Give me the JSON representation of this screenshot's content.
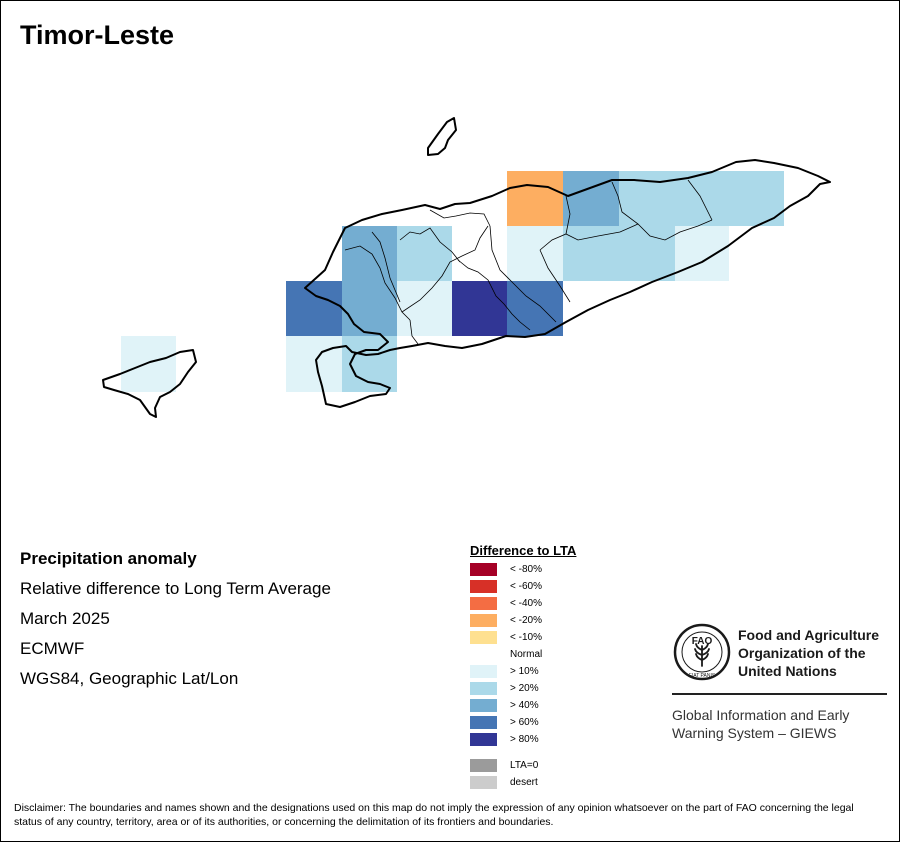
{
  "title": "Timor-Leste",
  "info": {
    "line1": "Precipitation anomaly",
    "line2": "Relative difference to Long Term Average",
    "line3": "March 2025",
    "line4": "ECMWF",
    "line5": "WGS84, Geographic Lat/Lon"
  },
  "legend": {
    "title": "Difference to LTA",
    "items": [
      {
        "label": "< -80%",
        "color": "#a50026"
      },
      {
        "label": "< -60%",
        "color": "#d73027"
      },
      {
        "label": "< -40%",
        "color": "#f46d43"
      },
      {
        "label": "< -20%",
        "color": "#fdae61"
      },
      {
        "label": "< -10%",
        "color": "#fee090"
      },
      {
        "label": "Normal",
        "color": "#ffffff"
      },
      {
        "label": "> 10%",
        "color": "#e0f3f8"
      },
      {
        "label": "> 20%",
        "color": "#abd9e9"
      },
      {
        "label": "> 40%",
        "color": "#74add1"
      },
      {
        "label": "> 60%",
        "color": "#4575b4"
      },
      {
        "label": "> 80%",
        "color": "#313695"
      }
    ],
    "extra": [
      {
        "label": "LTA=0",
        "color": "#9b9b9b"
      },
      {
        "label": "desert",
        "color": "#cccccc"
      }
    ]
  },
  "org": {
    "name": "Food and Agriculture Organization of the United Nations",
    "system": "Global Information and Early Warning System – GIEWS",
    "logo_text": "FAO",
    "logo_ring": "FIAT PANIS"
  },
  "disclaimer": "Disclaimer: The boundaries and names shown and the designations used on this map do not imply the expression of any opinion whatsoever on the part of FAO concerning the legal status of any country, territory, area or of its authorities, or concerning the delimitation of its frontiers and boundaries."
}
